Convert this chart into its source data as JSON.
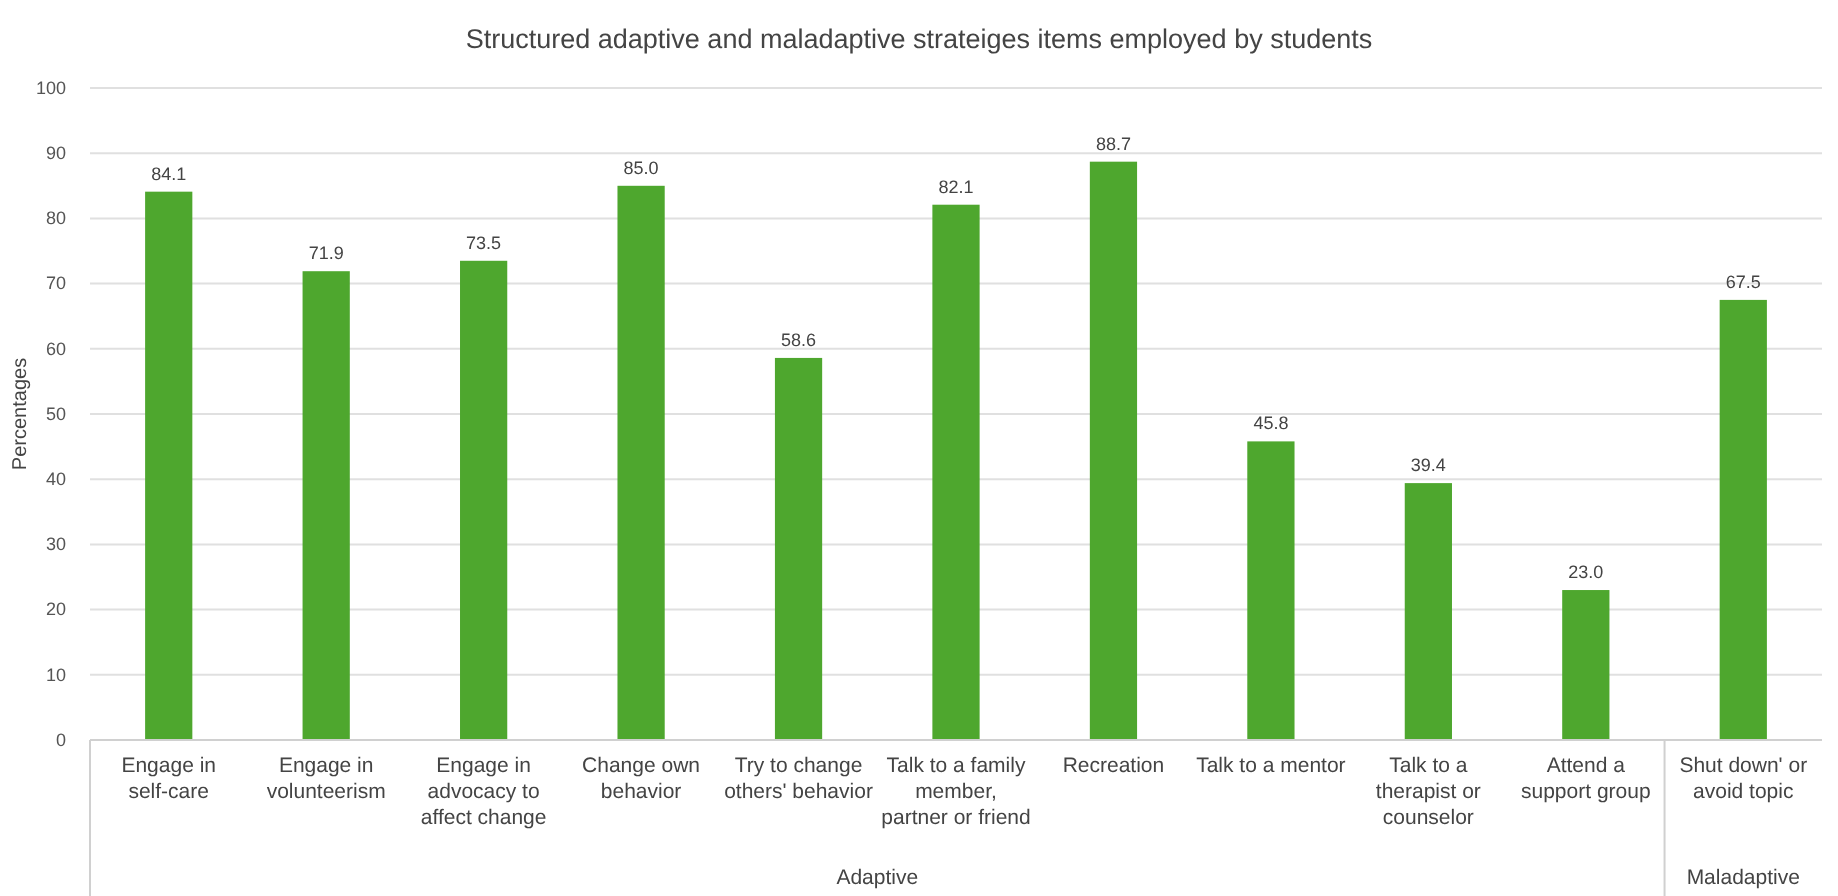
{
  "chart_data": {
    "type": "bar",
    "title": "Structured adaptive and maladaptive strateiges items employed by students",
    "ylabel": "Percentages",
    "categories": [
      "Engage in self-care",
      "Engage in volunteerism",
      "Engage in advocacy to affect change",
      "Change own behavior",
      "Try to change others' behavior",
      "Talk to a family member, partner or friend",
      "Recreation",
      "Talk to a mentor",
      "Talk to a therapist or counselor",
      "Attend a support group",
      "Shut down' or avoid topic"
    ],
    "values": [
      84.1,
      71.9,
      73.5,
      85.0,
      58.6,
      82.1,
      88.7,
      45.8,
      39.4,
      23.0,
      67.5
    ],
    "value_labels": [
      "84.1",
      "71.9",
      "73.5",
      "85.0",
      "58.6",
      "82.1",
      "88.7",
      "45.8",
      "39.4",
      "23.0",
      "67.5"
    ],
    "color": "#4ea72e",
    "ylim": [
      0,
      100
    ],
    "yticks": [
      0,
      10,
      20,
      30,
      40,
      50,
      60,
      70,
      80,
      90,
      100
    ],
    "grid": "y",
    "annotations": [
      "Adaptive",
      "Maladaptive"
    ]
  }
}
